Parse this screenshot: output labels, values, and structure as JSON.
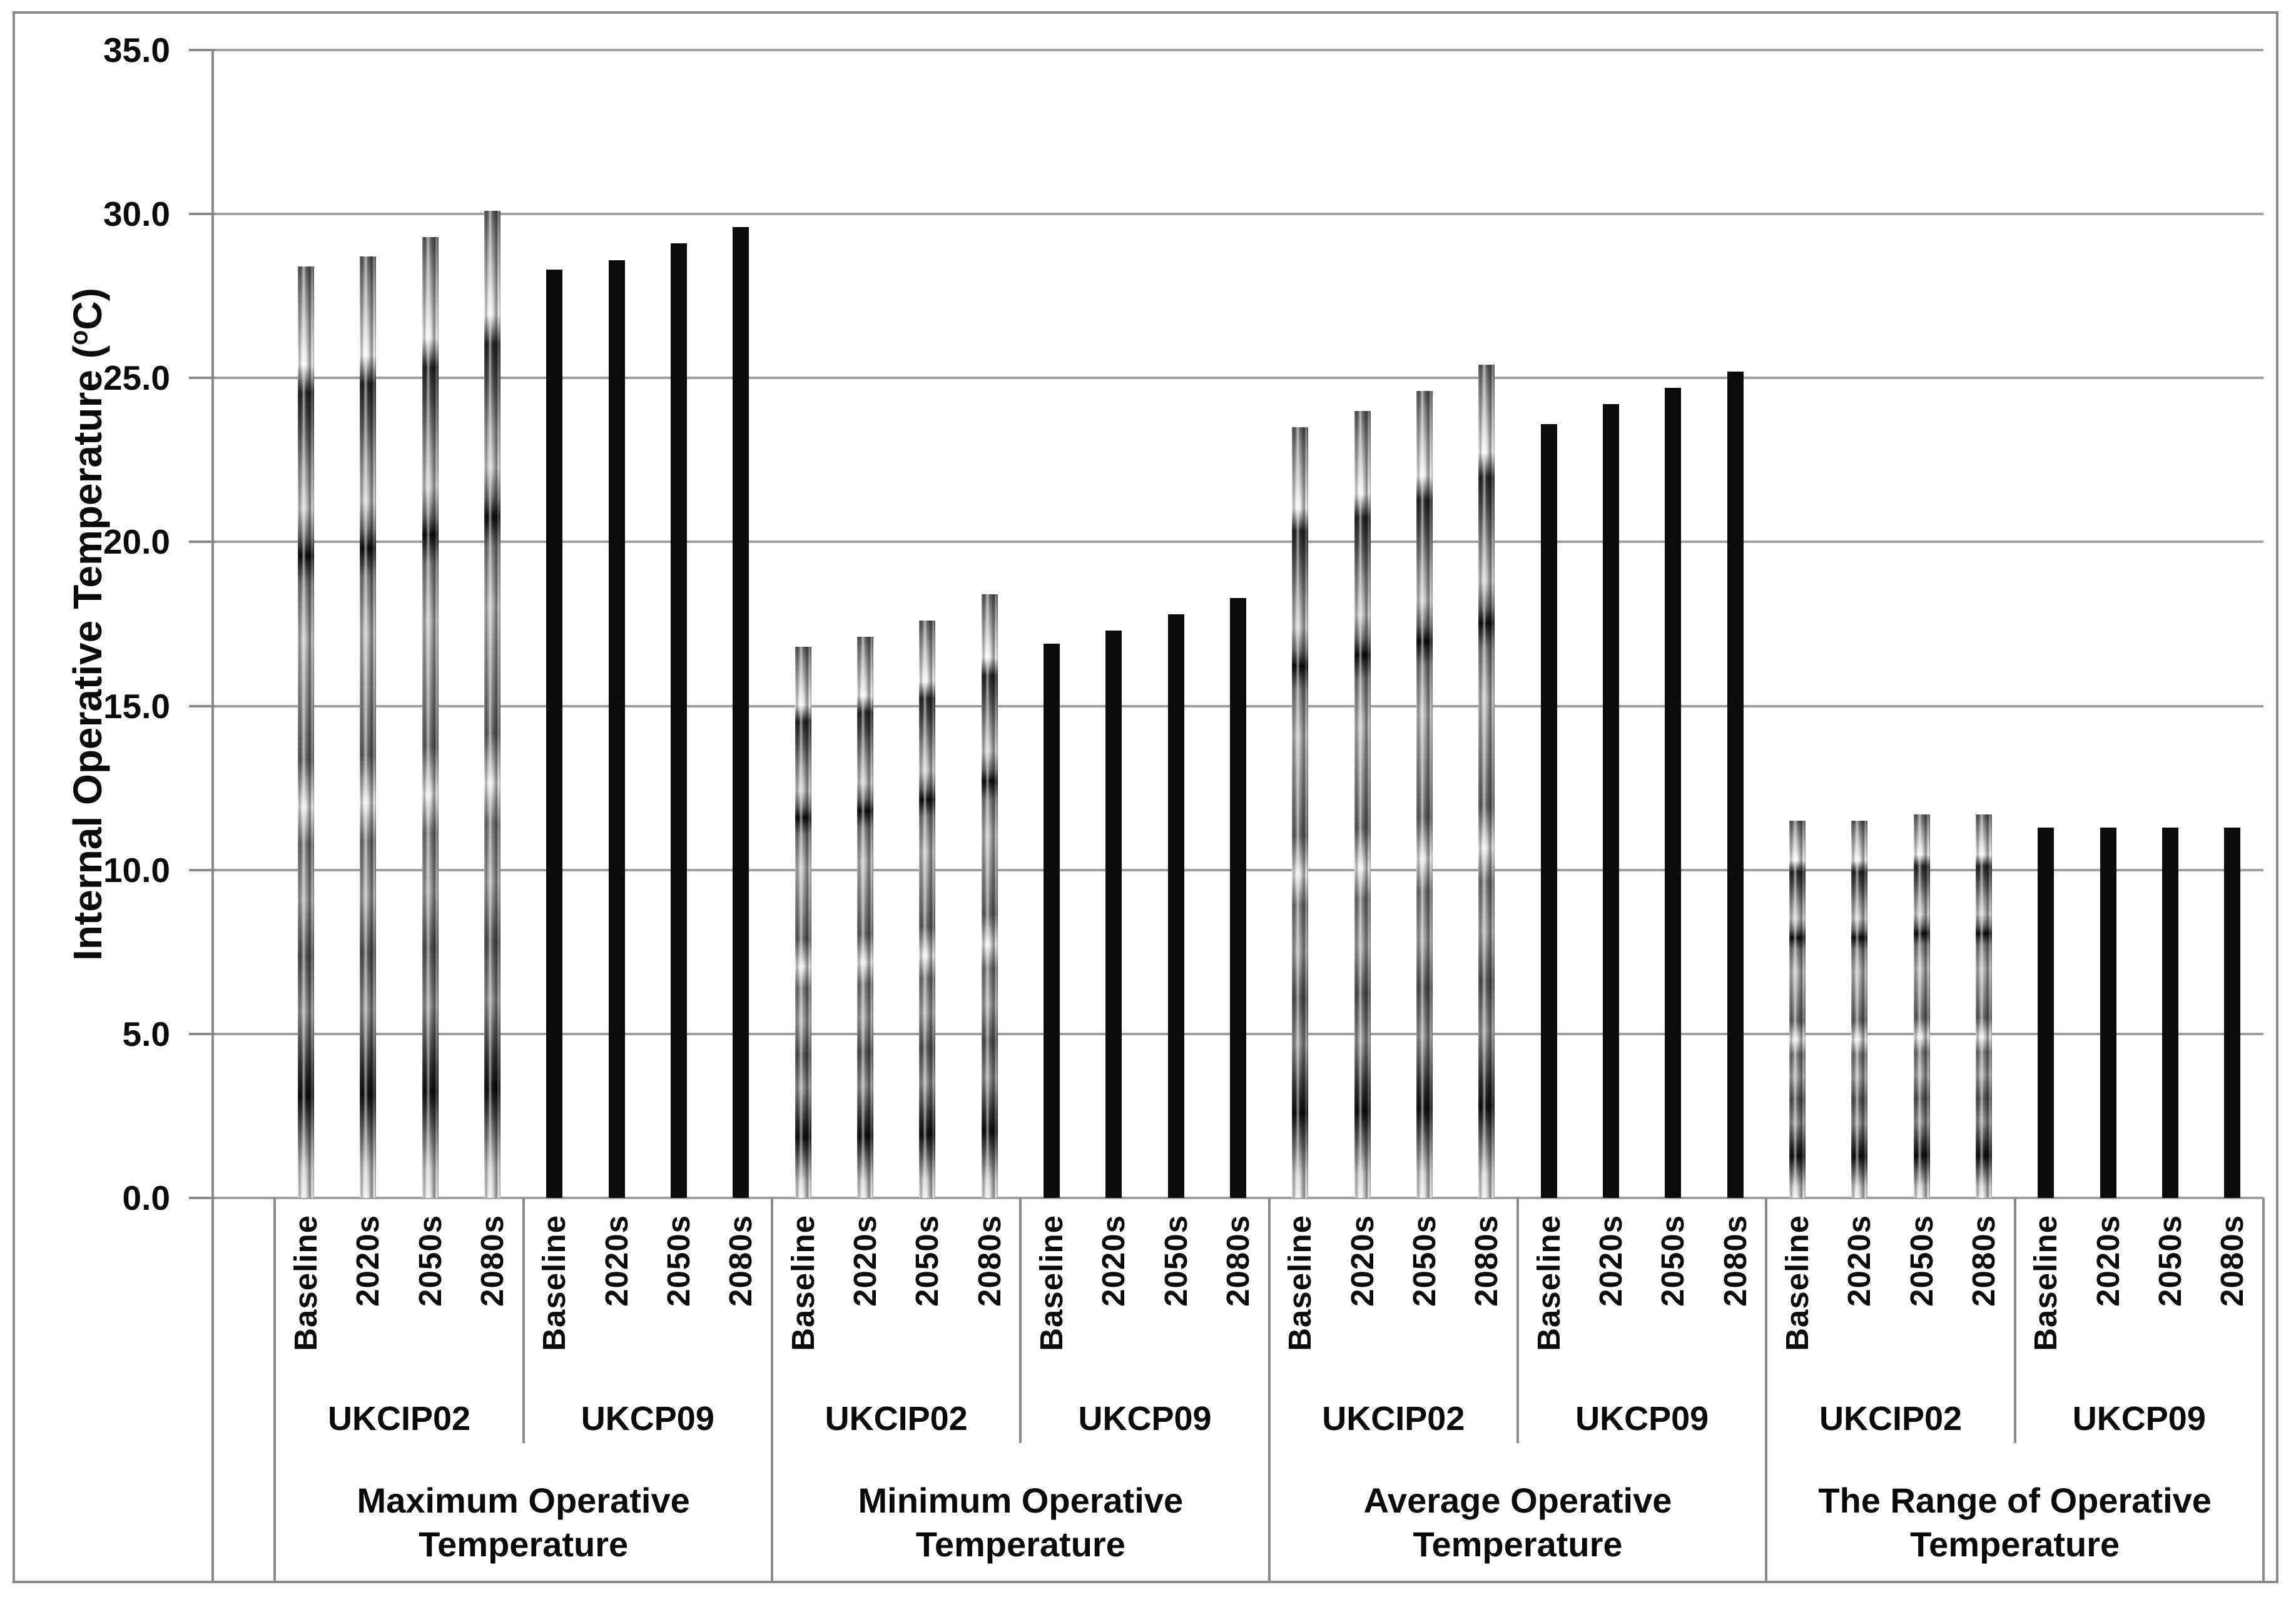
{
  "chart_data": {
    "type": "bar",
    "title": "",
    "ylabel": {
      "text": "Internal Operative Temperature ",
      "unit_prefix": "(",
      "unit_sup": "o",
      "unit_suffix": "C)"
    },
    "ylim": [
      0,
      35
    ],
    "ytick_step": 5,
    "ytick_labels": [
      "0.0",
      "5.0",
      "10.0",
      "15.0",
      "20.0",
      "25.0",
      "30.0",
      "35.0"
    ],
    "grid": true,
    "legend": "none",
    "periods": [
      "Baseline",
      "2020s",
      "2050s",
      "2080s"
    ],
    "groups": [
      {
        "label_lines": [
          "Maximum Operative",
          "Temperature"
        ],
        "scenarios": [
          {
            "name": "UKCIP02",
            "style": "textured",
            "values": [
              28.4,
              28.7,
              29.3,
              30.1
            ]
          },
          {
            "name": "UKCP09",
            "style": "solid",
            "values": [
              28.3,
              28.6,
              29.1,
              29.6
            ]
          }
        ]
      },
      {
        "label_lines": [
          "Minimum Operative",
          "Temperature"
        ],
        "scenarios": [
          {
            "name": "UKCIP02",
            "style": "textured",
            "values": [
              16.8,
              17.1,
              17.6,
              18.4
            ]
          },
          {
            "name": "UKCP09",
            "style": "solid",
            "values": [
              16.9,
              17.3,
              17.8,
              18.3
            ]
          }
        ]
      },
      {
        "label_lines": [
          "Average Operative",
          "Temperature"
        ],
        "scenarios": [
          {
            "name": "UKCIP02",
            "style": "textured",
            "values": [
              23.5,
              24.0,
              24.6,
              25.4
            ]
          },
          {
            "name": "UKCP09",
            "style": "solid",
            "values": [
              23.6,
              24.2,
              24.7,
              25.2
            ]
          }
        ]
      },
      {
        "label_lines": [
          "The Range of Operative",
          "Temperature"
        ],
        "scenarios": [
          {
            "name": "UKCIP02",
            "style": "textured",
            "values": [
              11.5,
              11.5,
              11.7,
              11.7
            ]
          },
          {
            "name": "UKCP09",
            "style": "solid",
            "values": [
              11.3,
              11.3,
              11.3,
              11.3
            ]
          }
        ]
      }
    ],
    "colors": {
      "solid_bar": "#0b0b0b",
      "gridline": "#a0a0a0",
      "axis": "#8a8a8a",
      "frame": "#8a8a8a",
      "text": "#0a0a0a"
    }
  }
}
